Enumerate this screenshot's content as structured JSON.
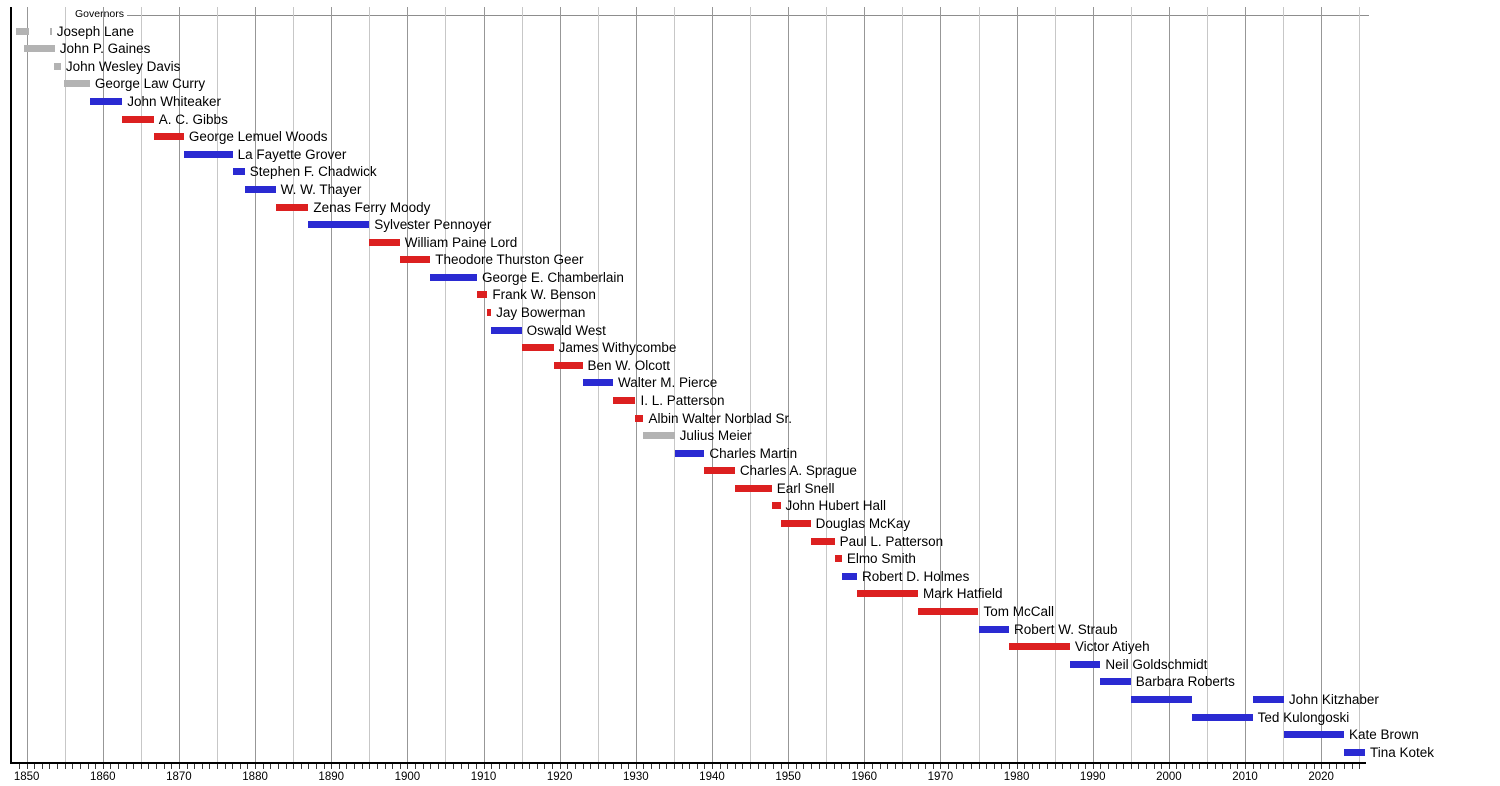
{
  "chart_data": {
    "type": "timeline-gantt",
    "title": "Governors",
    "legend_position": "top-left",
    "grid": "vertical, every 5 years (darker each decade)",
    "x_axis": {
      "start_year": 1848,
      "end_year": 2026,
      "tick_label_years": [
        1850,
        1860,
        1870,
        1880,
        1890,
        1900,
        1910,
        1920,
        1930,
        1940,
        1950,
        1960,
        1970,
        1980,
        1990,
        2000,
        2010,
        2020
      ],
      "gridline_interval_years": 5,
      "minor_tick_interval_years": 1
    },
    "colors": {
      "democratic": "#2a2ad2",
      "republican": "#dc2020",
      "other": "#b3b3b3"
    },
    "governors": [
      {
        "name": "Joseph Lane",
        "party": "other",
        "terms": [
          [
            1848.55,
            1850.35
          ],
          [
            1853.05,
            1853.3
          ]
        ]
      },
      {
        "name": "John P. Gaines",
        "party": "other",
        "terms": [
          [
            1849.7,
            1853.7
          ]
        ]
      },
      {
        "name": "John Wesley Davis",
        "party": "other",
        "terms": [
          [
            1853.6,
            1854.5
          ]
        ]
      },
      {
        "name": "George Law Curry",
        "party": "other",
        "terms": [
          [
            1854.85,
            1858.3
          ]
        ]
      },
      {
        "name": "John Whiteaker",
        "party": "democratic",
        "terms": [
          [
            1858.3,
            1862.55
          ]
        ]
      },
      {
        "name": "A. C. Gibbs",
        "party": "republican",
        "terms": [
          [
            1862.55,
            1866.7
          ]
        ]
      },
      {
        "name": "George Lemuel Woods",
        "party": "republican",
        "terms": [
          [
            1866.7,
            1870.65
          ]
        ]
      },
      {
        "name": "La Fayette Grover",
        "party": "democratic",
        "terms": [
          [
            1870.65,
            1877.05
          ]
        ]
      },
      {
        "name": "Stephen F. Chadwick",
        "party": "democratic",
        "terms": [
          [
            1877.05,
            1878.65
          ]
        ]
      },
      {
        "name": "W. W. Thayer",
        "party": "democratic",
        "terms": [
          [
            1878.65,
            1882.7
          ]
        ]
      },
      {
        "name": "Zenas Ferry Moody",
        "party": "republican",
        "terms": [
          [
            1882.7,
            1887.0
          ]
        ]
      },
      {
        "name": "Sylvester Pennoyer",
        "party": "democratic",
        "terms": [
          [
            1887.0,
            1895.0
          ]
        ]
      },
      {
        "name": "William Paine Lord",
        "party": "republican",
        "terms": [
          [
            1895.0,
            1899.0
          ]
        ]
      },
      {
        "name": "Theodore Thurston Geer",
        "party": "republican",
        "terms": [
          [
            1899.0,
            1903.0
          ]
        ]
      },
      {
        "name": "George E. Chamberlain",
        "party": "democratic",
        "terms": [
          [
            1903.0,
            1909.15
          ]
        ]
      },
      {
        "name": "Frank W. Benson",
        "party": "republican",
        "terms": [
          [
            1909.15,
            1910.5
          ]
        ]
      },
      {
        "name": "Jay Bowerman",
        "party": "republican",
        "terms": [
          [
            1910.5,
            1911.0
          ]
        ]
      },
      {
        "name": "Oswald West",
        "party": "democratic",
        "terms": [
          [
            1911.0,
            1915.0
          ]
        ]
      },
      {
        "name": "James Withycombe",
        "party": "republican",
        "terms": [
          [
            1915.0,
            1919.2
          ]
        ]
      },
      {
        "name": "Ben W. Olcott",
        "party": "republican",
        "terms": [
          [
            1919.2,
            1923.0
          ]
        ]
      },
      {
        "name": "Walter M. Pierce",
        "party": "democratic",
        "terms": [
          [
            1923.0,
            1927.0
          ]
        ]
      },
      {
        "name": "I. L. Patterson",
        "party": "republican",
        "terms": [
          [
            1927.0,
            1929.95
          ]
        ]
      },
      {
        "name": "Albin Walter Norblad Sr.",
        "party": "republican",
        "terms": [
          [
            1929.95,
            1931.0
          ]
        ]
      },
      {
        "name": "Julius Meier",
        "party": "other",
        "terms": [
          [
            1931.0,
            1935.1
          ]
        ]
      },
      {
        "name": "Charles Martin",
        "party": "democratic",
        "terms": [
          [
            1935.1,
            1939.0
          ]
        ]
      },
      {
        "name": "Charles A. Sprague",
        "party": "republican",
        "terms": [
          [
            1939.0,
            1943.0
          ]
        ]
      },
      {
        "name": "Earl Snell",
        "party": "republican",
        "terms": [
          [
            1943.0,
            1947.85
          ]
        ]
      },
      {
        "name": "John Hubert Hall",
        "party": "republican",
        "terms": [
          [
            1947.85,
            1949.0
          ]
        ]
      },
      {
        "name": "Douglas McKay",
        "party": "republican",
        "terms": [
          [
            1949.0,
            1952.95
          ]
        ]
      },
      {
        "name": "Paul L. Patterson",
        "party": "republican",
        "terms": [
          [
            1952.95,
            1956.1
          ]
        ]
      },
      {
        "name": "Elmo Smith",
        "party": "republican",
        "terms": [
          [
            1956.1,
            1957.05
          ]
        ]
      },
      {
        "name": "Robert D. Holmes",
        "party": "democratic",
        "terms": [
          [
            1957.05,
            1959.05
          ]
        ]
      },
      {
        "name": "Mark Hatfield",
        "party": "republican",
        "terms": [
          [
            1959.05,
            1967.05
          ]
        ]
      },
      {
        "name": "Tom McCall",
        "party": "republican",
        "terms": [
          [
            1967.05,
            1975.0
          ]
        ]
      },
      {
        "name": "Robert W. Straub",
        "party": "democratic",
        "terms": [
          [
            1975.0,
            1979.0
          ]
        ]
      },
      {
        "name": "Victor Atiyeh",
        "party": "republican",
        "terms": [
          [
            1979.0,
            1987.0
          ]
        ]
      },
      {
        "name": "Neil Goldschmidt",
        "party": "democratic",
        "terms": [
          [
            1987.0,
            1991.0
          ]
        ]
      },
      {
        "name": "Barbara Roberts",
        "party": "democratic",
        "terms": [
          [
            1991.0,
            1995.0
          ]
        ]
      },
      {
        "name": "John Kitzhaber",
        "party": "democratic",
        "terms": [
          [
            1995.0,
            2003.0
          ],
          [
            2011.0,
            2015.1
          ]
        ]
      },
      {
        "name": "Ted Kulongoski",
        "party": "democratic",
        "terms": [
          [
            2003.0,
            2011.0
          ]
        ]
      },
      {
        "name": "Kate Brown",
        "party": "democratic",
        "terms": [
          [
            2015.1,
            2023.0
          ]
        ]
      },
      {
        "name": "Tina Kotek",
        "party": "democratic",
        "terms": [
          [
            2023.0,
            2025.75
          ]
        ]
      }
    ]
  }
}
